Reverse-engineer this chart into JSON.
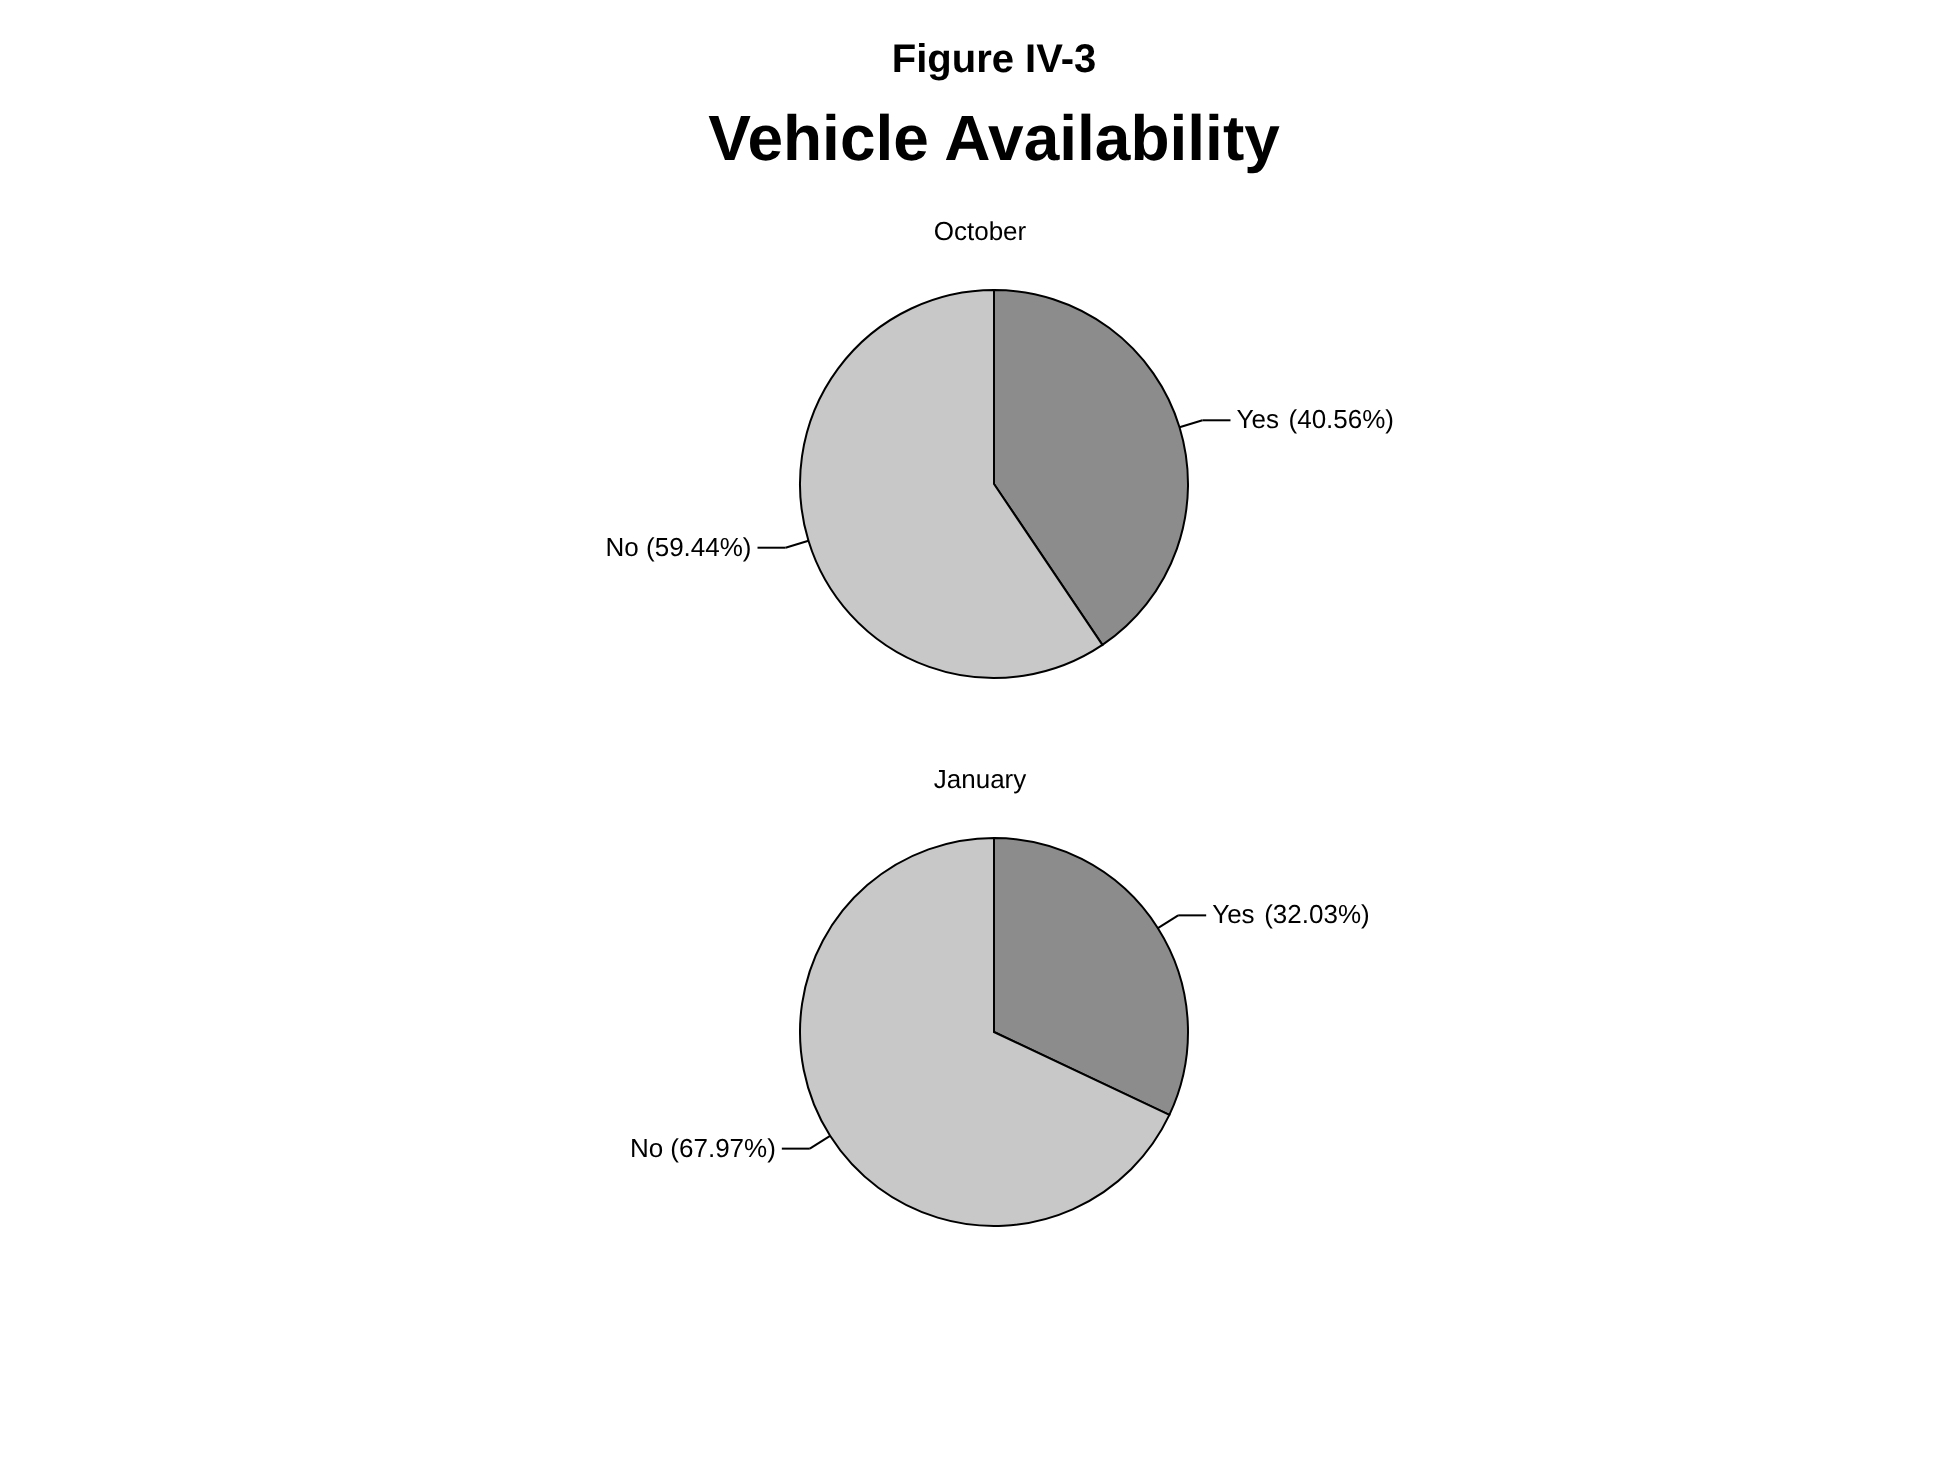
{
  "chart_data": [
    {
      "type": "other",
      "title": "Figure IV-3",
      "subtitle": "Vehicle Availability"
    },
    {
      "type": "pie",
      "title": "October",
      "categories": [
        "Yes",
        "No"
      ],
      "values": [
        40.56,
        59.44
      ],
      "colors": [
        "#8c8c8c",
        "#c8c8c8"
      ],
      "value_labels": [
        "(40.56%)",
        "(59.44%)"
      ]
    },
    {
      "type": "pie",
      "title": "January",
      "categories": [
        "Yes",
        "No"
      ],
      "values": [
        32.03,
        67.97
      ],
      "colors": [
        "#8c8c8c",
        "#c8c8c8"
      ],
      "value_labels": [
        "(32.03%)",
        "(67.97%)"
      ]
    }
  ]
}
